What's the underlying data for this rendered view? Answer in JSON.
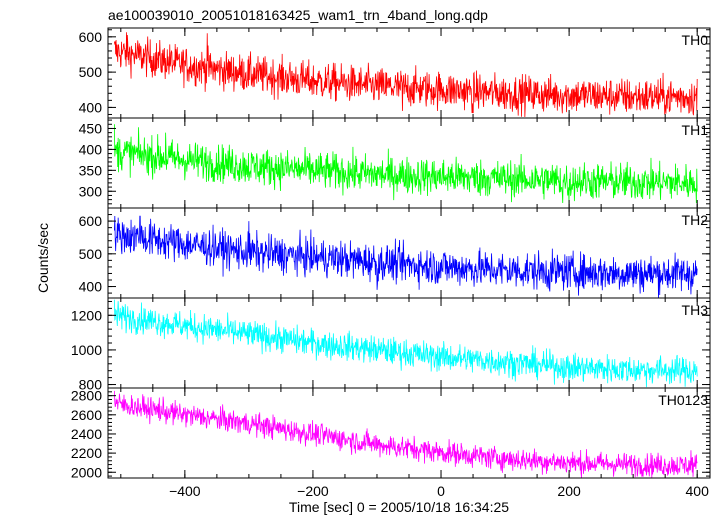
{
  "title": "ae100039010_20051018163425_wam1_trn_4band_long.qdp",
  "chart_data": {
    "type": "line",
    "title": "ae100039010_20051018163425_wam1_trn_4band_long.qdp",
    "xlabel": "Time [sec] 0 = 2005/10/18 16:34:25",
    "ylabel": "Counts/sec",
    "xlim": [
      -520,
      420
    ],
    "x_range": [
      -510,
      400
    ],
    "xticks": [
      -400,
      -200,
      0,
      200,
      400
    ],
    "xtick_labels": [
      "−400",
      "−200",
      "0",
      "200",
      "400"
    ],
    "grid": false,
    "legend": "none",
    "panels": [
      {
        "label": "TH0",
        "color": "#ff0000",
        "ylim": [
          370,
          625
        ],
        "yticks": [
          400,
          500,
          600
        ],
        "trend": [
          [
            -510,
            560
          ],
          [
            -400,
            520
          ],
          [
            -300,
            495
          ],
          [
            -200,
            475
          ],
          [
            -100,
            460
          ],
          [
            0,
            450
          ],
          [
            100,
            440
          ],
          [
            200,
            435
          ],
          [
            300,
            430
          ],
          [
            400,
            430
          ]
        ],
        "noise": 26,
        "spikes": [
          [
            -365,
            610
          ],
          [
            -490,
            605
          ],
          [
            -60,
            390
          ],
          [
            50,
            385
          ]
        ]
      },
      {
        "label": "TH1",
        "color": "#00ff00",
        "ylim": [
          260,
          475
        ],
        "yticks": [
          300,
          350,
          400,
          450
        ],
        "trend": [
          [
            -510,
            395
          ],
          [
            -400,
            375
          ],
          [
            -300,
            360
          ],
          [
            -200,
            350
          ],
          [
            -100,
            340
          ],
          [
            0,
            335
          ],
          [
            100,
            330
          ],
          [
            200,
            325
          ],
          [
            300,
            322
          ],
          [
            400,
            320
          ]
        ],
        "noise": 22,
        "spikes": [
          [
            -510,
            460
          ],
          [
            200,
            270
          ],
          [
            190,
            272
          ],
          [
            -430,
            440
          ]
        ]
      },
      {
        "label": "TH2",
        "color": "#0000ff",
        "ylim": [
          365,
          640
        ],
        "yticks": [
          400,
          500,
          600
        ],
        "trend": [
          [
            -510,
            560
          ],
          [
            -400,
            530
          ],
          [
            -300,
            505
          ],
          [
            -200,
            490
          ],
          [
            -100,
            475
          ],
          [
            0,
            460
          ],
          [
            100,
            450
          ],
          [
            200,
            445
          ],
          [
            300,
            440
          ],
          [
            400,
            440
          ]
        ],
        "noise": 28,
        "spikes": [
          [
            -470,
            615
          ],
          [
            -100,
            390
          ],
          [
            170,
            385
          ],
          [
            -300,
            600
          ]
        ]
      },
      {
        "label": "TH3",
        "color": "#00ffff",
        "ylim": [
          780,
          1300
        ],
        "yticks": [
          800,
          1000,
          1200
        ],
        "trend": [
          [
            -510,
            1200
          ],
          [
            -400,
            1140
          ],
          [
            -300,
            1090
          ],
          [
            -200,
            1040
          ],
          [
            -100,
            1000
          ],
          [
            0,
            960
          ],
          [
            100,
            930
          ],
          [
            200,
            900
          ],
          [
            300,
            885
          ],
          [
            400,
            880
          ]
        ],
        "noise": 40,
        "spikes": [
          [
            -510,
            1290
          ],
          [
            200,
            800
          ],
          [
            390,
            810
          ]
        ]
      },
      {
        "label": "TH0123",
        "color": "#ff00ff",
        "ylim": [
          1940,
          2880
        ],
        "yticks": [
          2000,
          2200,
          2400,
          2600,
          2800
        ],
        "trend": [
          [
            -510,
            2720
          ],
          [
            -400,
            2600
          ],
          [
            -300,
            2510
          ],
          [
            -200,
            2400
          ],
          [
            -100,
            2290
          ],
          [
            0,
            2210
          ],
          [
            100,
            2140
          ],
          [
            200,
            2100
          ],
          [
            300,
            2080
          ],
          [
            400,
            2070
          ]
        ],
        "noise": 60,
        "spikes": [
          [
            -510,
            2850
          ],
          [
            -440,
            2780
          ],
          [
            390,
            2230
          ]
        ]
      }
    ]
  }
}
